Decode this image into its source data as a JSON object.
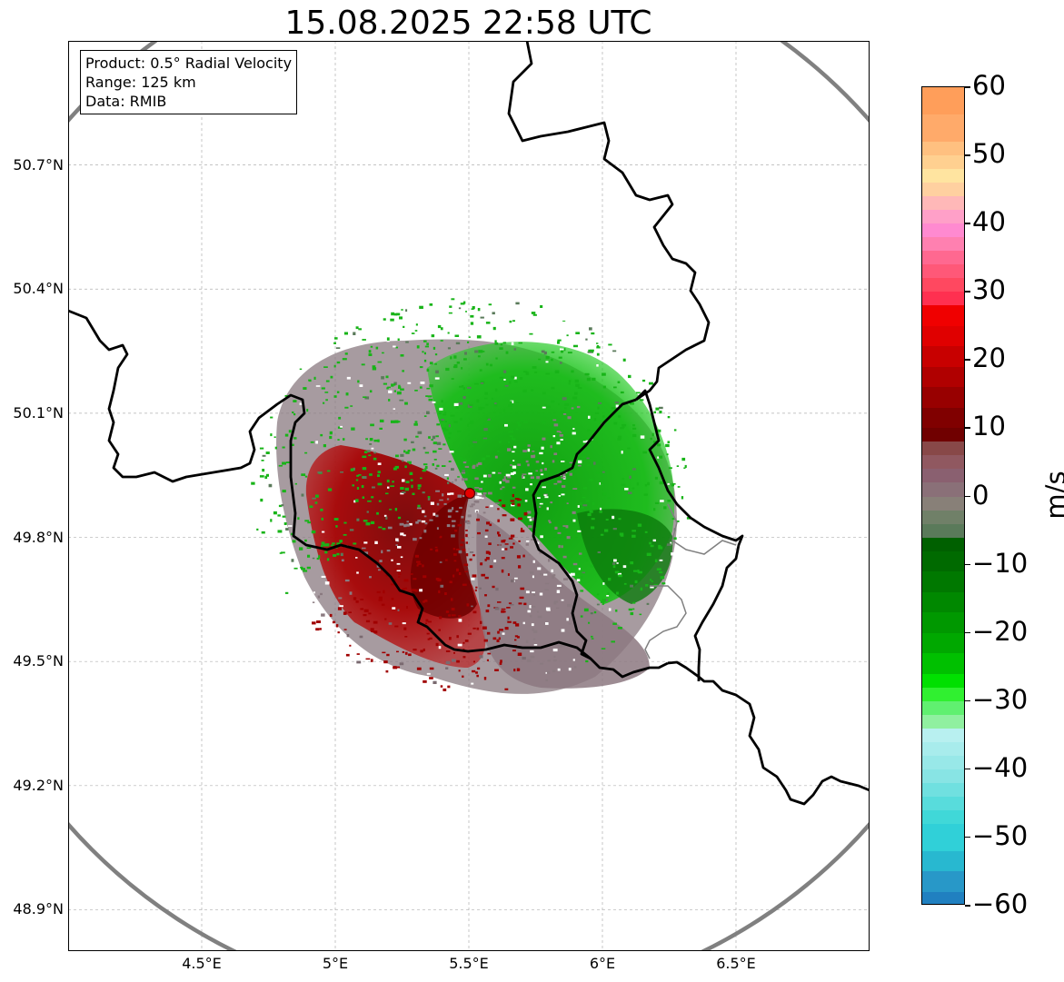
{
  "title": "15.08.2025 22:58 UTC",
  "info": {
    "product": "Product: 0.5° Radial Velocity",
    "range": "Range: 125 km",
    "data": "Data: RMIB"
  },
  "y_ticks": [
    "50.7°N",
    "50.4°N",
    "50.1°N",
    "49.8°N",
    "49.5°N",
    "49.2°N",
    "48.9°N"
  ],
  "x_ticks": [
    "4.5°E",
    "5°E",
    "5.5°E",
    "6°E",
    "6.5°E"
  ],
  "colorbar": {
    "label": "m/s",
    "ticks": [
      "60",
      "50",
      "40",
      "30",
      "20",
      "10",
      "0",
      "−10",
      "−20",
      "−30",
      "−40",
      "−50",
      "−60"
    ],
    "range": [
      -60,
      60
    ]
  },
  "map_extent": {
    "lon": [
      4.0,
      7.0
    ],
    "lat": [
      48.8,
      51.0
    ]
  },
  "radar_site": {
    "lon": 5.5,
    "lat": 49.92
  },
  "range_ring_km": 125,
  "colors": {
    "outbound_red": "#b00000",
    "inbound_green": "#1fa81f",
    "near_zero": "#8a7a80",
    "range_ring": "#808080",
    "border": "#000000",
    "site_marker": "#e60000"
  }
}
